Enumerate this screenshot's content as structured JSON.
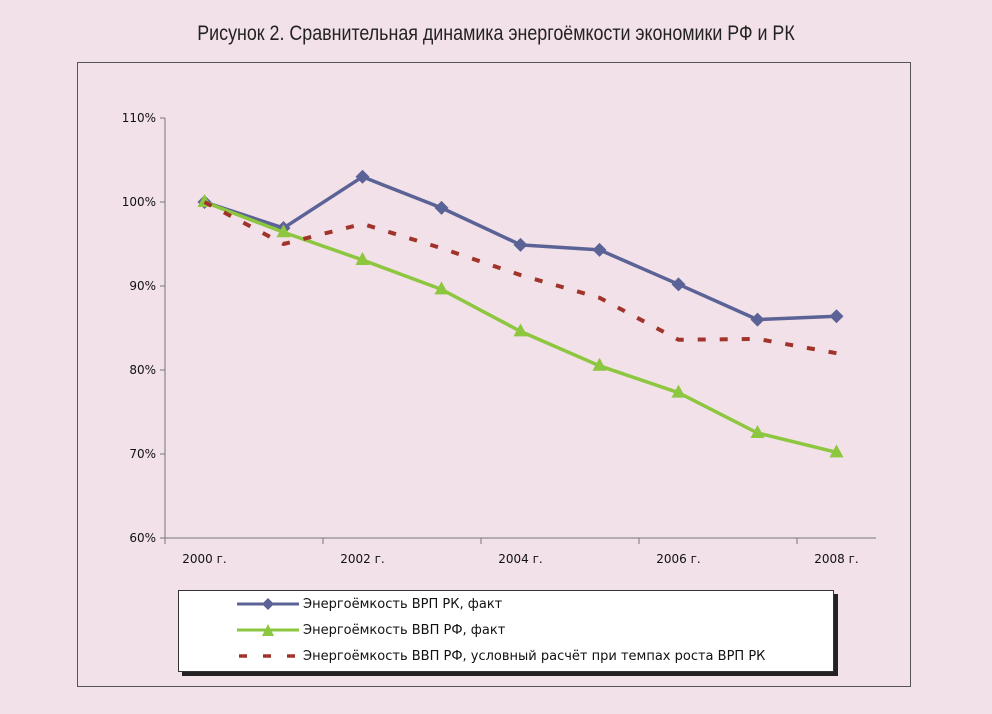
{
  "chart_data": {
    "type": "line",
    "title": "Рисунок 2. Сравнительная динамика энергоёмкости экономики РФ и РК",
    "xlabel": "",
    "ylabel": "",
    "x": [
      "2000",
      "2001",
      "2002",
      "2003",
      "2004",
      "2005",
      "2006",
      "2007",
      "2008"
    ],
    "x_tick_labels": [
      "2000 г.",
      "2002 г.",
      "2004 г.",
      "2006 г.",
      "2008 г."
    ],
    "y_tick_labels": [
      "110%",
      "100%",
      "90%",
      "80%",
      "70%",
      "60%"
    ],
    "ylim": [
      60,
      110
    ],
    "grid": false,
    "legend_position": "bottom",
    "series": [
      {
        "name": "Энергоёмкость ВРП  РК, факт",
        "color": "#5b6396",
        "marker": "diamond",
        "style": "solid",
        "values": [
          100,
          96.9,
          103.0,
          99.3,
          94.9,
          94.3,
          90.2,
          86.0,
          86.4
        ]
      },
      {
        "name": "Энергоёмкость ВВП  РФ, факт",
        "color": "#8dc63f",
        "marker": "triangle",
        "style": "solid",
        "values": [
          100,
          96.4,
          93.1,
          89.6,
          84.6,
          80.5,
          77.3,
          72.5,
          70.2
        ]
      },
      {
        "name": "Энергоёмкость ВВП РФ, условный расчёт при темпах роста ВРП РК",
        "color": "#a0342a",
        "marker": "none",
        "style": "dashed",
        "values": [
          100,
          95.0,
          97.4,
          94.5,
          91.3,
          88.6,
          83.6,
          83.7,
          82.0
        ]
      }
    ]
  }
}
